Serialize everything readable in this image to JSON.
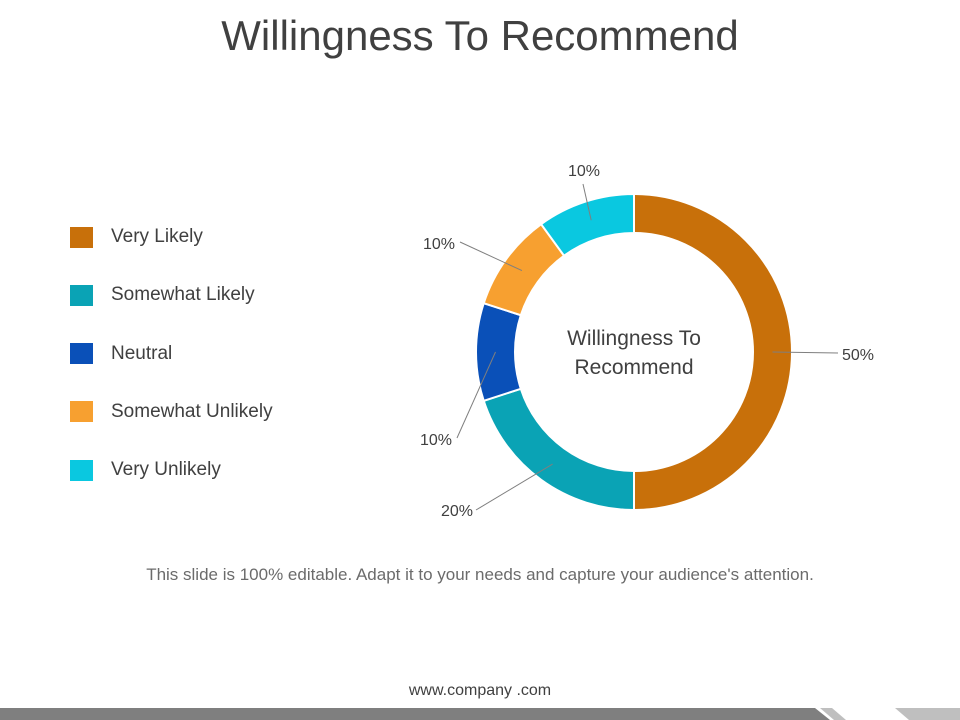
{
  "slide": {
    "title": "Willingness To Recommend",
    "caption": "This slide is 100% editable. Adapt it to your needs and capture your audience's attention.",
    "footer_url": "www.company .com"
  },
  "chart_data": {
    "type": "pie",
    "variant": "donut",
    "center_label": [
      "Willingness To",
      "Recommend"
    ],
    "legend_position": "left",
    "categories": [
      "Very Likely",
      "Somewhat Likely",
      "Neutral",
      "Somewhat Unlikely",
      "Very Unlikely"
    ],
    "values": [
      50,
      20,
      10,
      10,
      10
    ],
    "data_labels": [
      "50%",
      "20%",
      "10%",
      "10%",
      "10%"
    ],
    "colors": [
      "#C8700A",
      "#0AA3B5",
      "#0A50B8",
      "#F7A030",
      "#0AC8E0"
    ]
  },
  "colors": {
    "footer_dark": "#7f7f7f",
    "footer_light": "#bfbfbf"
  }
}
